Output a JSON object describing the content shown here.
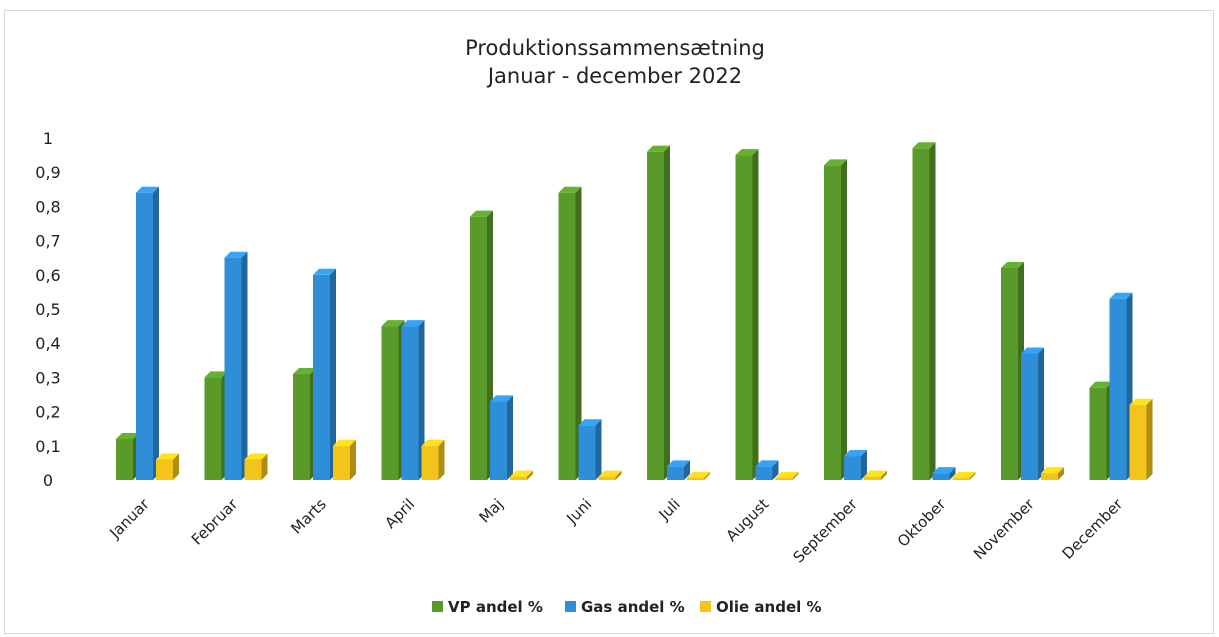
{
  "chart_data": {
    "type": "bar",
    "title": "Produktionssammensætning",
    "subtitle": "Januar - december 2022",
    "categories": [
      "Januar",
      "Februar",
      "Marts",
      "April",
      "Maj",
      "Juni",
      "Juli",
      "August",
      "September",
      "Oktober",
      "November",
      "December"
    ],
    "y_ticks": [
      "0",
      "0,1",
      "0,2",
      "0,3",
      "0,4",
      "0,5",
      "0,6",
      "0,7",
      "0,8",
      "0,9",
      "1"
    ],
    "ylim": [
      0,
      1
    ],
    "grid": false,
    "legend_position": "bottom",
    "series": [
      {
        "name": "VP andel %",
        "color": "#5a9a2a",
        "values": [
          0.12,
          0.3,
          0.31,
          0.45,
          0.77,
          0.84,
          0.96,
          0.95,
          0.92,
          0.97,
          0.62,
          0.27
        ]
      },
      {
        "name": "Gas andel %",
        "color": "#2e8fd8",
        "values": [
          0.84,
          0.65,
          0.6,
          0.45,
          0.23,
          0.16,
          0.04,
          0.04,
          0.07,
          0.02,
          0.37,
          0.53
        ]
      },
      {
        "name": "Olie andel %",
        "color": "#f3c41a",
        "values": [
          0.06,
          0.06,
          0.1,
          0.1,
          0.01,
          0.01,
          0.005,
          0.005,
          0.01,
          0.005,
          0.02,
          0.22
        ]
      }
    ]
  }
}
